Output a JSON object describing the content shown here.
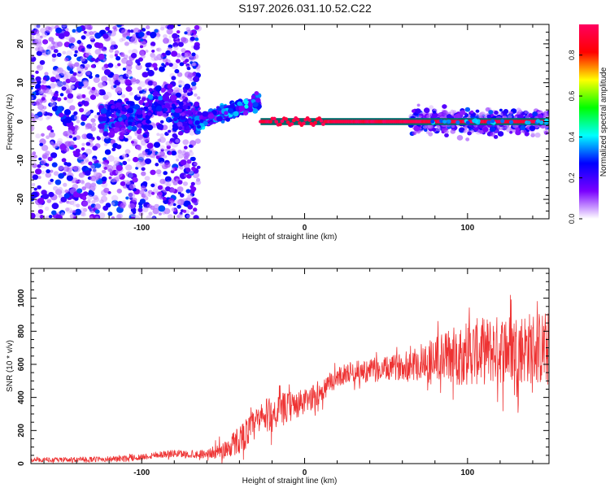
{
  "page": {
    "title": "S197.2026.031.10.52.C22"
  },
  "chart_data": [
    {
      "type": "heatmap",
      "title": "S197.2026.031.10.52.C22",
      "xlabel": "Height of straight line (km)",
      "ylabel": "Frequency (Hz)",
      "xlim": [
        -168,
        150
      ],
      "ylim": [
        -25,
        25
      ],
      "x_ticks": [
        -100,
        0,
        100
      ],
      "x_tick_labels": [
        "-100",
        "0",
        "100"
      ],
      "y_ticks": [
        -20,
        -10,
        0,
        10,
        20
      ],
      "y_tick_labels": [
        "-20",
        "-10",
        "0",
        "10",
        "20"
      ],
      "colorbar": {
        "label": "Normalized spectral amplitude",
        "range": [
          0,
          0.95
        ],
        "ticks": [
          0.0,
          0.2,
          0.4,
          0.6,
          0.8
        ],
        "tick_labels": [
          "0.0",
          "0.2",
          "0.4",
          "0.6",
          "0.8"
        ],
        "colors": [
          "#ffffff",
          "#7a00ff",
          "#0000ff",
          "#00ffff",
          "#00ff00",
          "#ffff00",
          "#ff0000",
          "#ff0060"
        ]
      },
      "regions": [
        {
          "x_range": [
            -168,
            -65
          ],
          "freq_spread": 25,
          "amplitude": [
            0.05,
            0.3
          ],
          "note": "diffuse noise"
        },
        {
          "x_range": [
            -65,
            -28
          ],
          "freq_center_start": 0,
          "freq_center_end": 5,
          "amplitude": [
            0.1,
            0.4
          ]
        },
        {
          "x_range": [
            -28,
            150
          ],
          "freq_center": 0,
          "amplitude": [
            0.8,
            0.95
          ],
          "note": "strong narrow tone"
        },
        {
          "x_range": [
            65,
            150
          ],
          "freq_spread": 6,
          "amplitude": [
            0.05,
            0.3
          ]
        }
      ]
    },
    {
      "type": "line",
      "xlabel": "Height of straight line (km)",
      "ylabel": "SNR (10 * v/v)",
      "xlim": [
        -168,
        150
      ],
      "ylim": [
        0,
        1180
      ],
      "x_ticks": [
        -100,
        0,
        100
      ],
      "x_tick_labels": [
        "-100",
        "0",
        "100"
      ],
      "y_ticks": [
        0,
        200,
        400,
        600,
        800,
        1000
      ],
      "y_tick_labels": [
        "0",
        "200",
        "400",
        "600",
        "800",
        "1000"
      ],
      "color": "#ee3333",
      "series": [
        {
          "name": "SNR",
          "x": [
            -168,
            -150,
            -130,
            -110,
            -100,
            -90,
            -80,
            -70,
            -60,
            -50,
            -45,
            -40,
            -35,
            -30,
            -25,
            -20,
            -15,
            -10,
            -5,
            0,
            5,
            10,
            15,
            20,
            25,
            30,
            40,
            50,
            60,
            70,
            80,
            90,
            100,
            110,
            120,
            130,
            140,
            150
          ],
          "y": [
            22,
            22,
            25,
            30,
            40,
            55,
            60,
            55,
            60,
            80,
            110,
            150,
            190,
            240,
            280,
            300,
            320,
            340,
            355,
            370,
            400,
            430,
            480,
            520,
            545,
            555,
            560,
            570,
            590,
            610,
            630,
            650,
            670,
            680,
            690,
            700,
            700,
            690
          ]
        }
      ],
      "noise_amplitude": {
        "x": [
          -168,
          -60,
          -40,
          -20,
          0,
          20,
          60,
          80,
          100,
          150
        ],
        "amp": [
          12,
          25,
          90,
          110,
          80,
          60,
          80,
          150,
          200,
          230
        ]
      }
    }
  ]
}
